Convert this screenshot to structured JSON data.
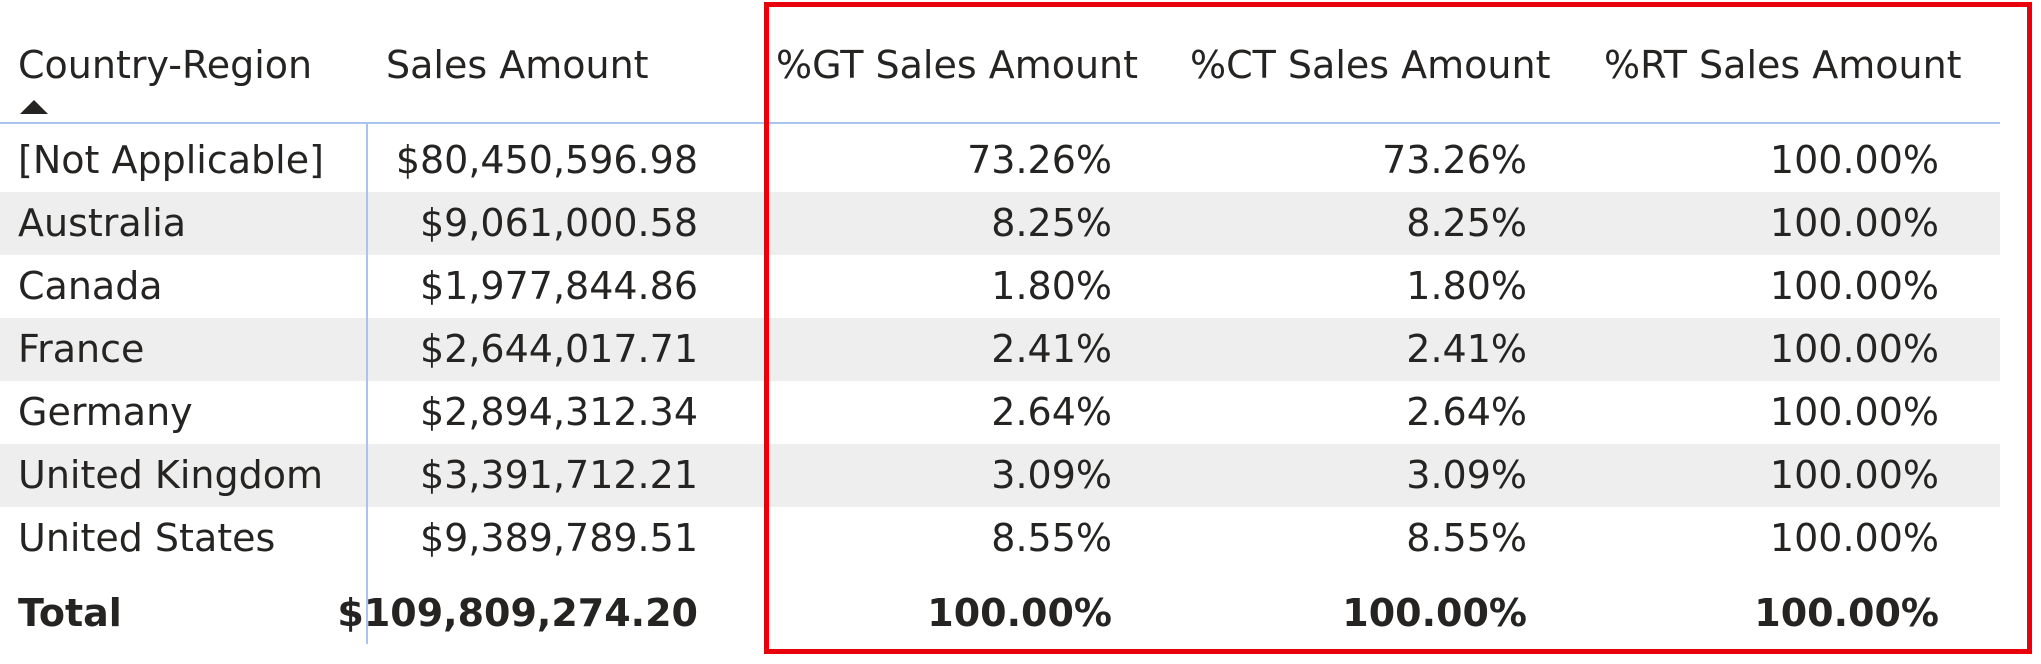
{
  "table": {
    "columns": [
      "Country-Region",
      "Sales Amount",
      "%GT Sales Amount",
      "%CT Sales Amount",
      "%RT Sales Amount"
    ],
    "sort_icon": "sort-ascending-icon",
    "rows": [
      {
        "country": "[Not Applicable]",
        "sales": "$80,450,596.98",
        "gt": "73.26%",
        "ct": "73.26%",
        "rt": "100.00%"
      },
      {
        "country": "Australia",
        "sales": "$9,061,000.58",
        "gt": "8.25%",
        "ct": "8.25%",
        "rt": "100.00%"
      },
      {
        "country": "Canada",
        "sales": "$1,977,844.86",
        "gt": "1.80%",
        "ct": "1.80%",
        "rt": "100.00%"
      },
      {
        "country": "France",
        "sales": "$2,644,017.71",
        "gt": "2.41%",
        "ct": "2.41%",
        "rt": "100.00%"
      },
      {
        "country": "Germany",
        "sales": "$2,894,312.34",
        "gt": "2.64%",
        "ct": "2.64%",
        "rt": "100.00%"
      },
      {
        "country": "United Kingdom",
        "sales": "$3,391,712.21",
        "gt": "3.09%",
        "ct": "3.09%",
        "rt": "100.00%"
      },
      {
        "country": "United States",
        "sales": "$9,389,789.51",
        "gt": "8.55%",
        "ct": "8.55%",
        "rt": "100.00%"
      }
    ],
    "total": {
      "country": "Total",
      "sales": "$109,809,274.20",
      "gt": "100.00%",
      "ct": "100.00%",
      "rt": "100.00%"
    }
  },
  "colors": {
    "highlight_border": "#e8000b",
    "divider": "#a9c4ef",
    "alt_row": "#eeeeee"
  }
}
